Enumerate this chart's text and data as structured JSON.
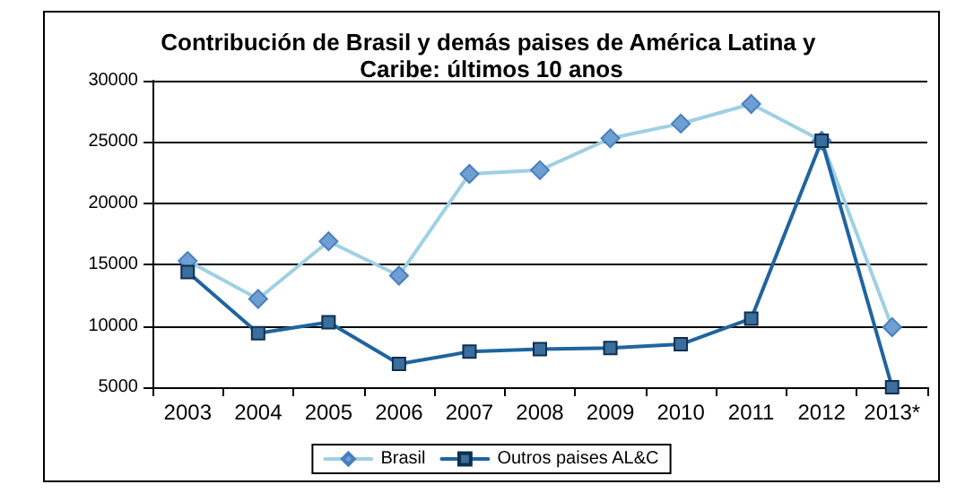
{
  "chart_data": {
    "type": "line",
    "title": "Contribución de Brasil y demás paises de América Latina y Caribe: últimos 10 anos",
    "categories": [
      "2003",
      "2004",
      "2005",
      "2006",
      "2007",
      "2008",
      "2009",
      "2010",
      "2011",
      "2012",
      "2013*"
    ],
    "series": [
      {
        "name": "Brasil",
        "color": "#9fd0e3",
        "marker": "diamond",
        "values": [
          15300,
          12200,
          16900,
          14100,
          22400,
          22700,
          25300,
          26500,
          28100,
          25100,
          9900
        ]
      },
      {
        "name": "Outros paises AL&C",
        "color": "#1f64a0",
        "marker": "square",
        "values": [
          14400,
          9400,
          10300,
          6900,
          7900,
          8100,
          8200,
          8500,
          10600,
          25100,
          5000
        ]
      }
    ],
    "ylim": [
      5000,
      30000
    ],
    "yticks": [
      5000,
      10000,
      15000,
      20000,
      25000,
      30000
    ],
    "grid": "y",
    "legend": "bottom"
  }
}
